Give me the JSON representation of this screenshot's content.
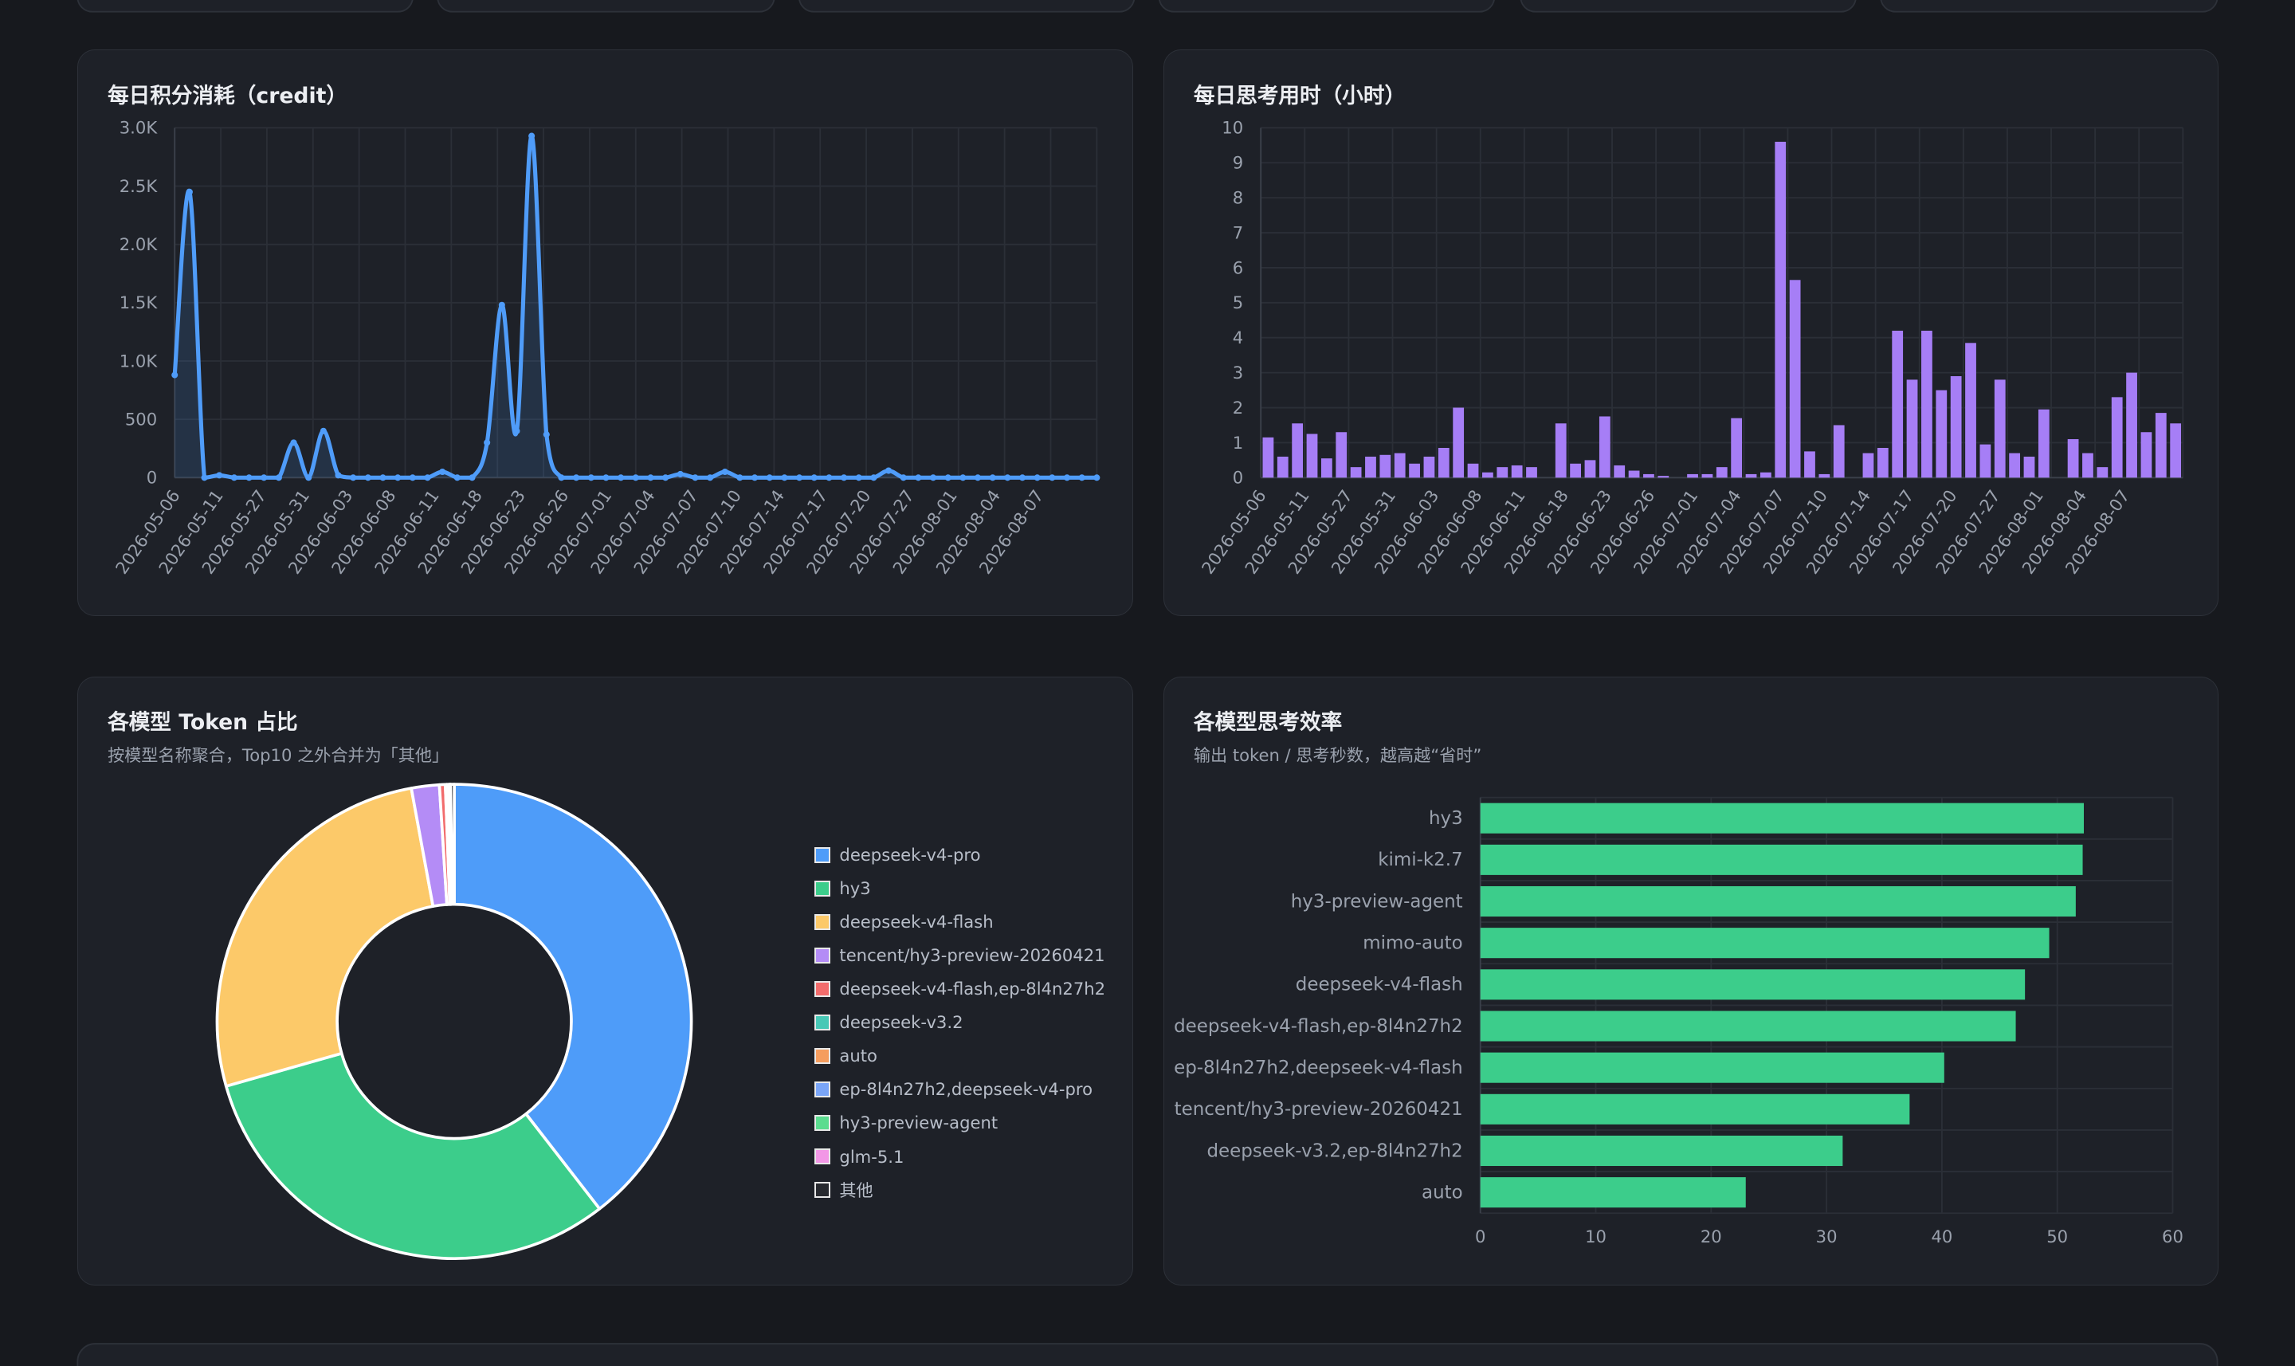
{
  "cards": {
    "credit": {
      "title": "每日积分消耗（credit）"
    },
    "think": {
      "title": "每日思考用时（小时）"
    },
    "token": {
      "title": "各模型 Token 占比",
      "subtitle": "按模型名称聚合，Top10 之外合并为「其他」"
    },
    "eff": {
      "title": "各模型思考效率",
      "subtitle": "输出 token / 思考秒数，越高越“省时”"
    }
  },
  "chart_data": [
    {
      "id": "credit",
      "type": "area",
      "color": "#4f9cf9",
      "title": "每日积分消耗（credit）",
      "yticks": [
        "0",
        "500",
        "1.0K",
        "1.5K",
        "2.0K",
        "2.5K",
        "3.0K"
      ],
      "ylim": [
        0,
        3000
      ],
      "grid": true,
      "xtick_labels": [
        "2026-05-06",
        "2026-05-11",
        "2026-05-27",
        "2026-05-31",
        "2026-06-03",
        "2026-06-08",
        "2026-06-11",
        "2026-06-18",
        "2026-06-23",
        "2026-06-26",
        "2026-07-01",
        "2026-07-04",
        "2026-07-07",
        "2026-07-10",
        "2026-07-14",
        "2026-07-17",
        "2026-07-20",
        "2026-07-27",
        "2026-08-01",
        "2026-08-04",
        "2026-08-07"
      ],
      "values": [
        880,
        2450,
        0,
        20,
        0,
        0,
        0,
        0,
        300,
        0,
        400,
        20,
        0,
        0,
        0,
        0,
        0,
        0,
        50,
        0,
        0,
        300,
        1480,
        400,
        2930,
        370,
        0,
        0,
        0,
        0,
        0,
        0,
        0,
        0,
        30,
        0,
        0,
        50,
        0,
        0,
        0,
        0,
        0,
        0,
        0,
        0,
        0,
        0,
        60,
        0,
        0,
        0,
        0,
        0,
        0,
        0,
        0,
        0,
        0,
        0,
        0,
        0,
        0
      ]
    },
    {
      "id": "think",
      "type": "bar",
      "color": "#a67ef6",
      "title": "每日思考用时（小时）",
      "yticks": [
        "0",
        "1",
        "2",
        "3",
        "4",
        "5",
        "6",
        "7",
        "8",
        "9",
        "10"
      ],
      "ylim": [
        0,
        10
      ],
      "grid": true,
      "xtick_labels": [
        "2026-05-06",
        "2026-05-11",
        "2026-05-27",
        "2026-05-31",
        "2026-06-03",
        "2026-06-08",
        "2026-06-11",
        "2026-06-18",
        "2026-06-23",
        "2026-06-26",
        "2026-07-01",
        "2026-07-04",
        "2026-07-07",
        "2026-07-10",
        "2026-07-14",
        "2026-07-17",
        "2026-07-20",
        "2026-07-27",
        "2026-08-01",
        "2026-08-04",
        "2026-08-07"
      ],
      "values": [
        1.15,
        0.6,
        1.55,
        1.25,
        0.55,
        1.3,
        0.3,
        0.6,
        0.65,
        0.7,
        0.4,
        0.6,
        0.85,
        2.0,
        0.4,
        0.15,
        0.3,
        0.35,
        0.3,
        0,
        1.55,
        0.4,
        0.5,
        1.75,
        0.35,
        0.2,
        0.1,
        0.05,
        0,
        0.1,
        0.1,
        0.3,
        1.7,
        0.1,
        0.15,
        9.6,
        5.65,
        0.75,
        0.1,
        1.5,
        0,
        0.7,
        0.85,
        4.2,
        2.8,
        4.2,
        2.5,
        2.9,
        3.85,
        0.95,
        2.8,
        0.7,
        0.6,
        1.95,
        0,
        1.1,
        0.7,
        0.3,
        2.3,
        3.0,
        1.3,
        1.85,
        1.55
      ]
    },
    {
      "id": "token",
      "type": "pie",
      "title": "各模型 Token 占比",
      "donut": true,
      "legend": "right",
      "labels": [
        "deepseek-v4-pro",
        "hy3",
        "deepseek-v4-flash",
        "tencent/hy3-preview-20260421",
        "deepseek-v4-flash,ep-8l4n27h2",
        "deepseek-v3.2",
        "auto",
        "ep-8l4n27h2,deepseek-v4-pro",
        "hy3-preview-agent",
        "glm-5.1",
        "其他"
      ],
      "values": [
        39.5,
        31.1,
        26.5,
        1.9,
        0.4,
        0.1,
        0.1,
        0.05,
        0.05,
        0.05,
        0.25
      ],
      "colors": [
        "#4e9cf9",
        "#3ccd8b",
        "#fcc969",
        "#b48cf6",
        "#f26c6c",
        "#48c8b6",
        "#f59d5e",
        "#7aa5f7",
        "#5bdc8f",
        "#f297e6",
        "#27292f"
      ]
    },
    {
      "id": "eff",
      "type": "bar",
      "orientation": "horizontal",
      "color": "#3ccd8b",
      "title": "各模型思考效率",
      "categories": [
        "hy3",
        "kimi-k2.7",
        "hy3-preview-agent",
        "mimo-auto",
        "deepseek-v4-flash",
        "deepseek-v4-flash,ep-8l4n27h2",
        "ep-8l4n27h2,deepseek-v4-flash",
        "tencent/hy3-preview-20260421",
        "deepseek-v3.2,ep-8l4n27h2",
        "auto"
      ],
      "values": [
        52.3,
        52.2,
        51.6,
        49.3,
        47.2,
        46.4,
        40.2,
        37.2,
        31.4,
        23.0
      ],
      "xlim": [
        0,
        60
      ],
      "xticks": [
        "0",
        "10",
        "20",
        "30",
        "40",
        "50",
        "60"
      ],
      "grid": true
    }
  ]
}
